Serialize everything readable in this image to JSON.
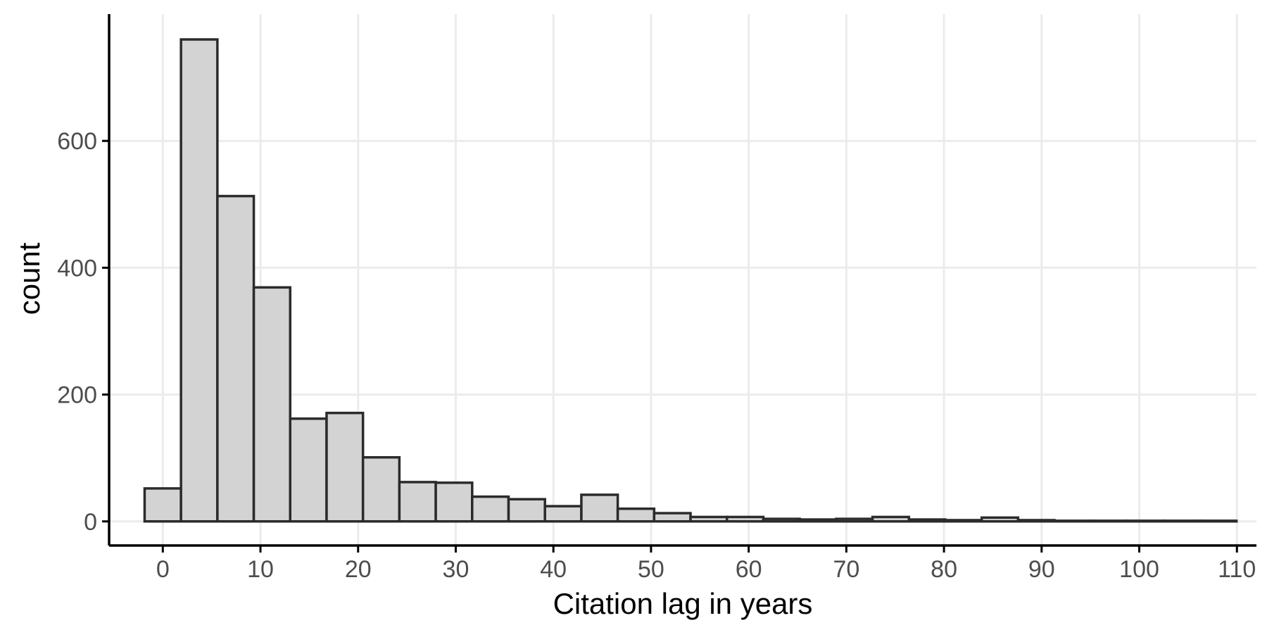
{
  "chart_data": {
    "type": "bar",
    "title": "",
    "xlabel": "Citation lag in years",
    "ylabel": "count",
    "xlim": [
      -5.5,
      112
    ],
    "ylim": [
      -38,
      800
    ],
    "x_ticks": [
      0,
      10,
      20,
      30,
      40,
      50,
      60,
      70,
      80,
      90,
      100,
      110
    ],
    "y_ticks": [
      0,
      200,
      400,
      600
    ],
    "x_tick_labels": [
      "0",
      "10",
      "20",
      "30",
      "40",
      "50",
      "60",
      "70",
      "80",
      "90",
      "100",
      "110"
    ],
    "y_tick_labels": [
      "0",
      "200",
      "400",
      "600"
    ],
    "grid": true,
    "bin_width": 3.727,
    "bin_centers": [
      0,
      3.727,
      7.455,
      11.182,
      14.909,
      18.636,
      22.364,
      26.091,
      29.818,
      33.545,
      37.273,
      41,
      44.727,
      48.455,
      52.182,
      55.909,
      59.636,
      63.364,
      67.091,
      70.818,
      74.545,
      78.273,
      82,
      85.727,
      89.455,
      93.182,
      96.909,
      100.636,
      104.364,
      108.091
    ],
    "counts": [
      52,
      760,
      513,
      369,
      162,
      171,
      101,
      62,
      61,
      39,
      35,
      24,
      42,
      20,
      13,
      7,
      7,
      4,
      3,
      4,
      7,
      3,
      2,
      6,
      2,
      1,
      1,
      1,
      1,
      1
    ],
    "colors": {
      "fill": "#d3d3d3",
      "edge": "#2b2b2b",
      "grid": "#ebebeb"
    }
  }
}
